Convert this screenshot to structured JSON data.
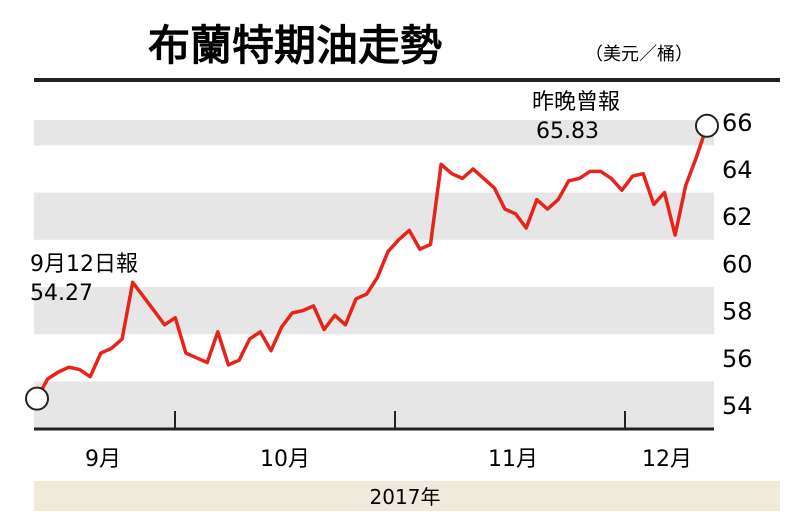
{
  "chart_data": {
    "type": "line",
    "title": "布蘭特期油走勢",
    "unit": "（美元／桶）",
    "year_label": "2017年",
    "y_ticks": [
      "54",
      "56",
      "58",
      "60",
      "62",
      "64",
      "66"
    ],
    "ylim": [
      53,
      67
    ],
    "months": [
      "9月",
      "10月",
      "11月",
      "12月"
    ],
    "line_color": "#e8231a",
    "band_color": "#e6e6e6",
    "axis_color": "#222222",
    "year_bar_color": "#efeada",
    "annotations": {
      "start": {
        "label": "9月12日報",
        "value": "54.27"
      },
      "end": {
        "label": "昨晚曾報",
        "value": "65.83"
      }
    },
    "series": [
      {
        "values": [
          54.27,
          55.1,
          55.4,
          55.6,
          55.5,
          55.2,
          56.2,
          56.4,
          56.8,
          59.2,
          58.6,
          58.0,
          57.4,
          57.7,
          56.2,
          56.0,
          55.8,
          57.1,
          55.7,
          55.9,
          56.8,
          57.1,
          56.3,
          57.3,
          57.9,
          58.0,
          58.2,
          57.2,
          57.8,
          57.4,
          58.5,
          58.7,
          59.4,
          60.5,
          61.0,
          61.4,
          60.6,
          60.8,
          64.2,
          63.8,
          63.6,
          64.0,
          63.6,
          63.2,
          62.3,
          62.1,
          61.5,
          62.7,
          62.3,
          62.7,
          63.5,
          63.6,
          63.9,
          63.9,
          63.6,
          63.1,
          63.7,
          63.8,
          62.5,
          63.0,
          61.2,
          63.3,
          64.5,
          65.83
        ]
      }
    ]
  }
}
